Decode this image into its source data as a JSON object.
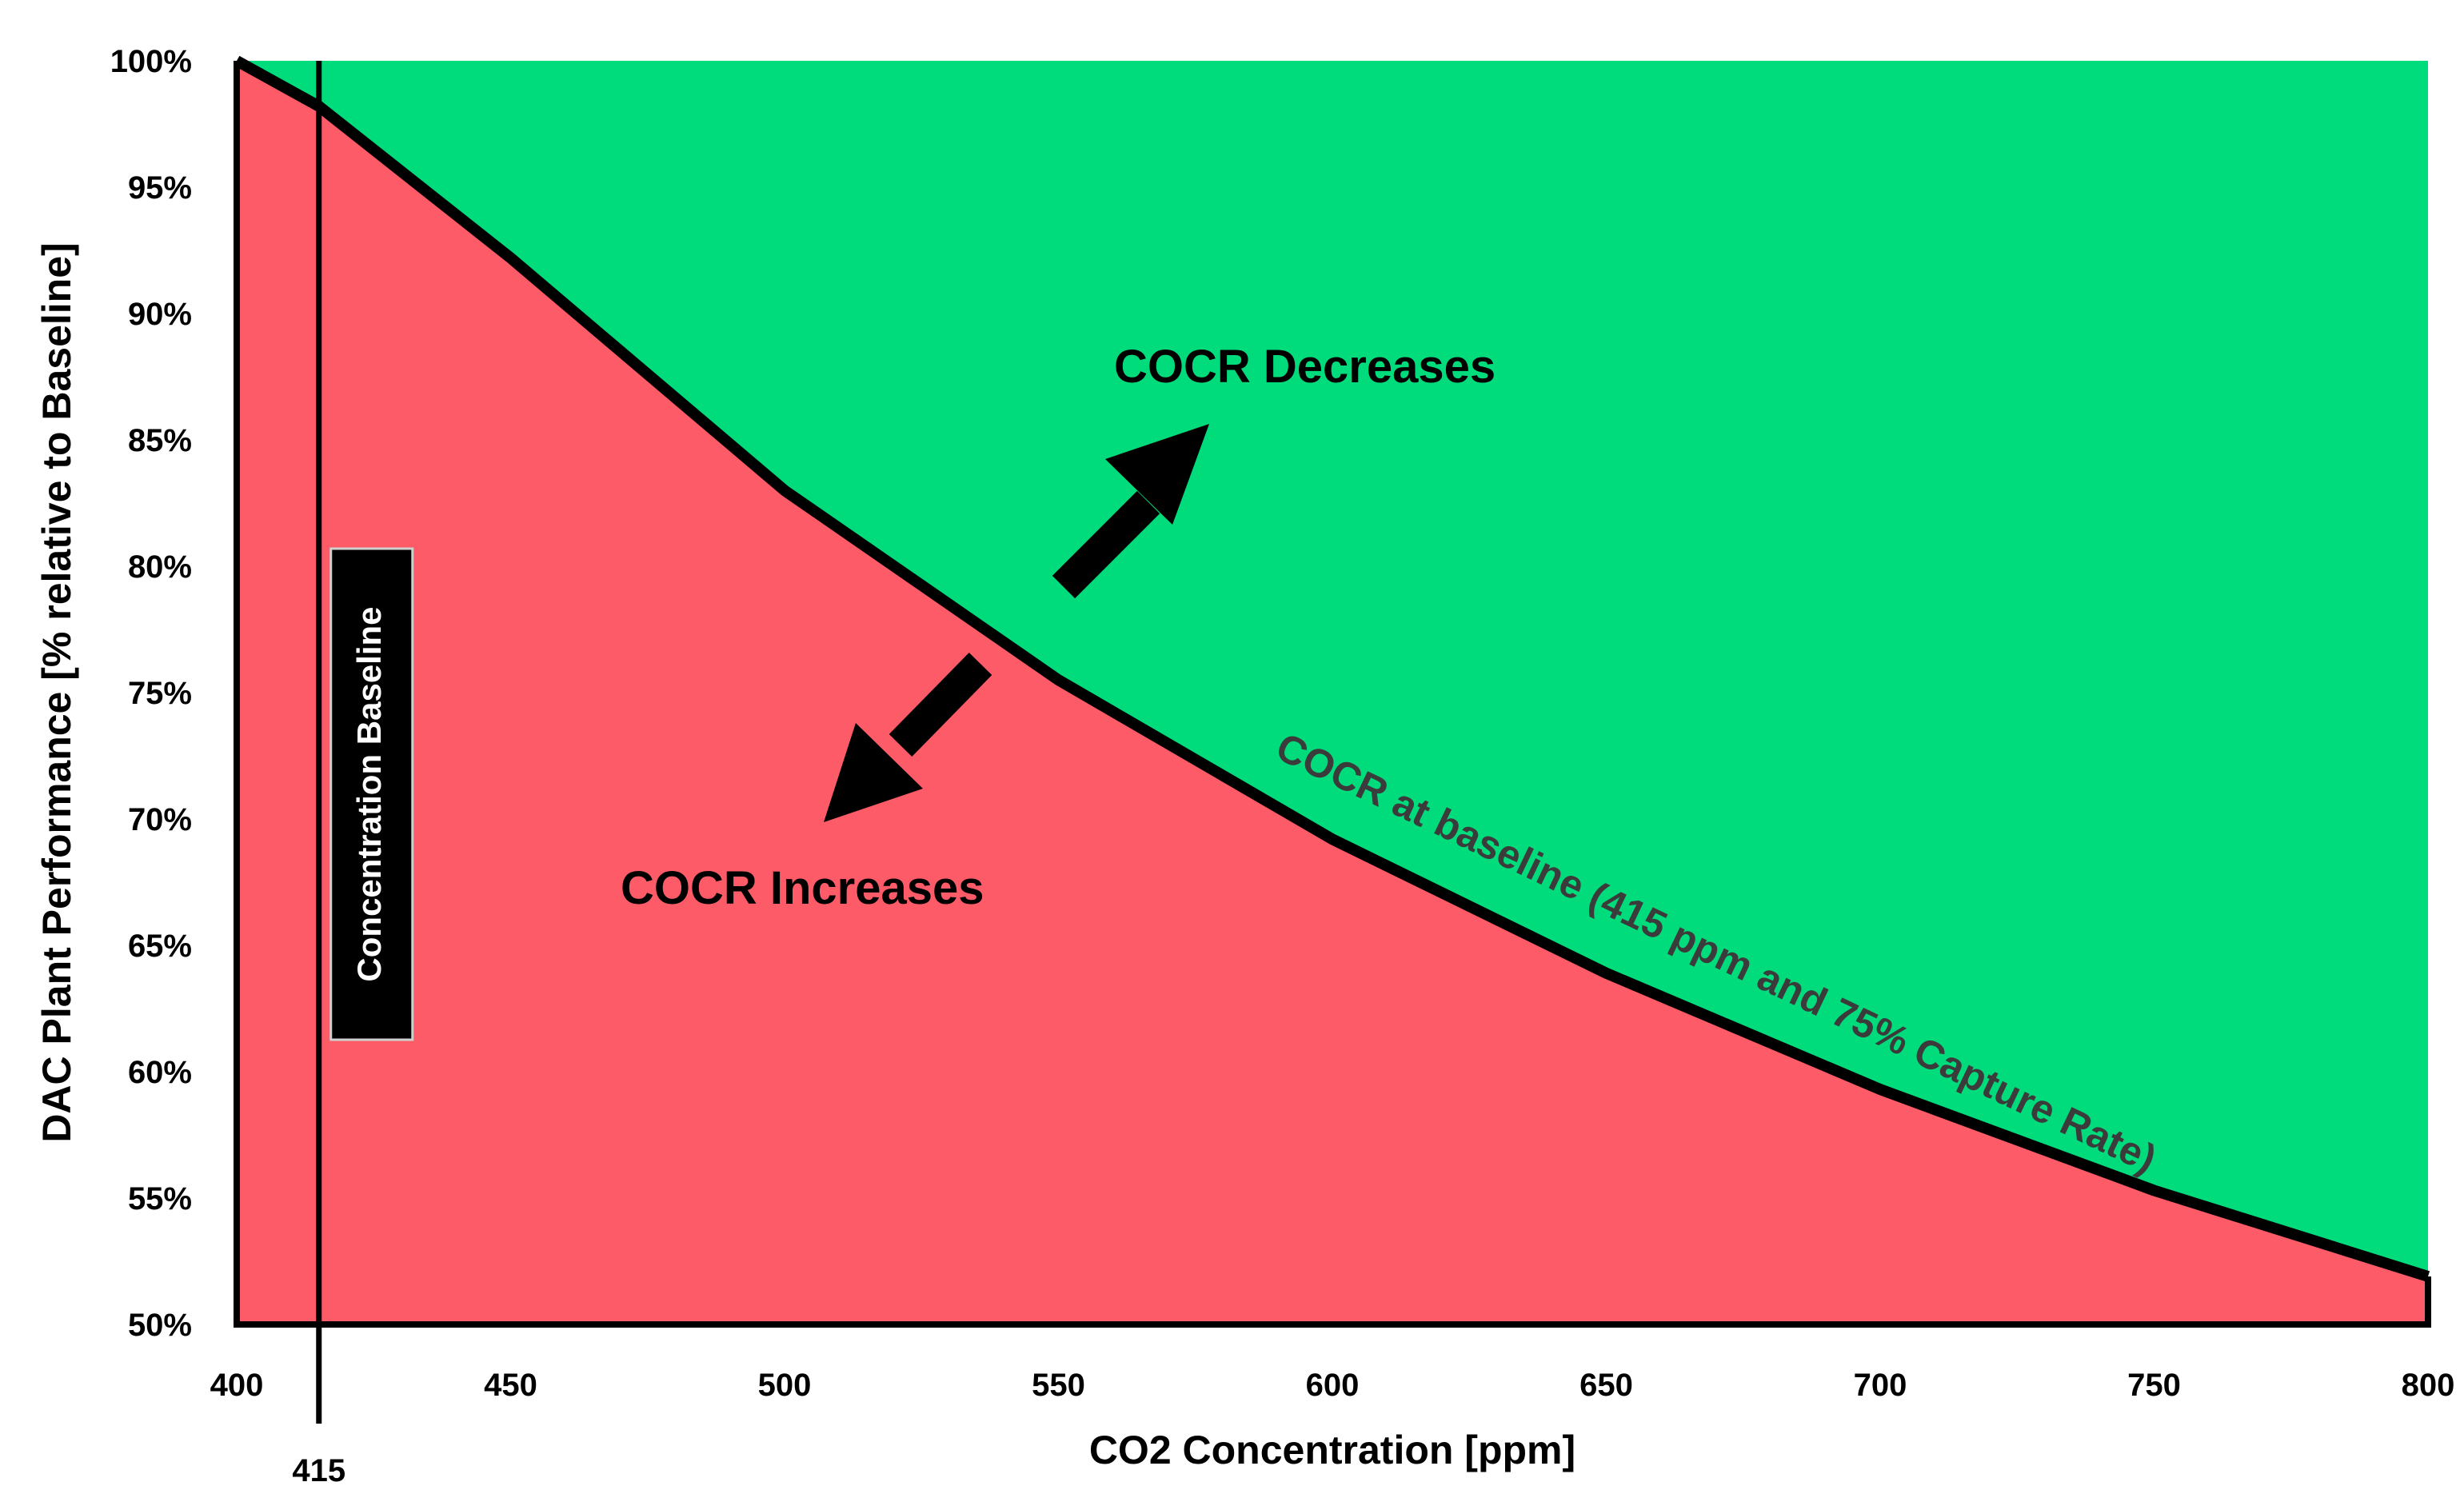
{
  "chart_data": {
    "type": "area",
    "title": "",
    "xlabel": "CO2 Concentration [ppm]",
    "ylabel": "DAC Plant Performance [% relative to Baseline]",
    "xlim": [
      400,
      800
    ],
    "ylim": [
      50,
      100
    ],
    "x_ticks": [
      400,
      450,
      500,
      550,
      600,
      650,
      700,
      750,
      800
    ],
    "x_tick_labels": [
      "400",
      "450",
      "500",
      "550",
      "600",
      "650",
      "700",
      "750",
      "800"
    ],
    "y_ticks": [
      50,
      55,
      60,
      65,
      70,
      75,
      80,
      85,
      90,
      95,
      100
    ],
    "y_tick_labels": [
      "50%",
      "55%",
      "60%",
      "65%",
      "70%",
      "75%",
      "80%",
      "85%",
      "90%",
      "95%",
      "100%"
    ],
    "series": [
      {
        "name": "COCR at baseline (415 ppm and 75% Capture Rate)",
        "x": [
          400,
          415,
          450,
          500,
          550,
          600,
          650,
          700,
          750,
          800
        ],
        "values": [
          100,
          98.2,
          92.2,
          83.0,
          75.5,
          69.2,
          63.9,
          59.3,
          55.3,
          51.9
        ]
      }
    ],
    "regions": {
      "below_curve": {
        "label": "COCR Increases",
        "color": "#fe5b68"
      },
      "above_curve": {
        "label": "COCR Decreases",
        "color": "#00dc7c"
      }
    },
    "baseline": {
      "x": 415,
      "tick_label": "415",
      "label": "Concentration Baseline"
    },
    "annotations": {
      "curve_label": "COCR at baseline (415 ppm and 75% Capture Rate)",
      "up_arrow_label": "COCR Decreases",
      "down_arrow_label": "COCR Increases"
    },
    "colors": {
      "curve": "#000000",
      "arrow": "#000000",
      "baseline_box": "#000000"
    }
  }
}
